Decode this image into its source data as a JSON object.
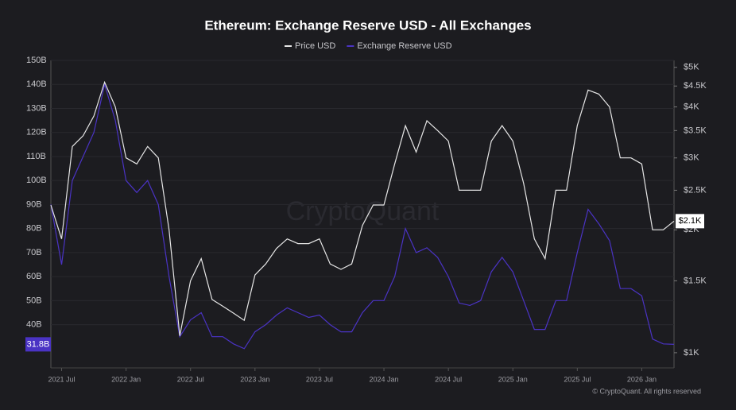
{
  "chart_data": {
    "type": "line",
    "title": "Ethereum: Exchange Reserve USD - All Exchanges",
    "watermark": "CryptoQuant",
    "copyright": "© CryptoQuant. All rights reserved",
    "x": [
      "2021-06",
      "2021-07",
      "2021-08",
      "2021-09",
      "2021-10",
      "2021-11",
      "2021-12",
      "2022-01",
      "2022-02",
      "2022-03",
      "2022-04",
      "2022-05",
      "2022-06",
      "2022-07",
      "2022-08",
      "2022-09",
      "2022-10",
      "2022-11",
      "2022-12",
      "2023-01",
      "2023-02",
      "2023-03",
      "2023-04",
      "2023-05",
      "2023-06",
      "2023-07",
      "2023-08",
      "2023-09",
      "2023-10",
      "2023-11",
      "2023-12",
      "2024-01",
      "2024-02",
      "2024-03",
      "2024-04",
      "2024-05",
      "2024-06",
      "2024-07",
      "2024-08",
      "2024-09",
      "2024-10",
      "2024-11",
      "2024-12",
      "2025-01",
      "2025-02",
      "2025-03",
      "2025-04",
      "2025-05",
      "2025-06",
      "2025-07",
      "2025-08",
      "2025-09",
      "2025-10",
      "2025-11",
      "2025-12",
      "2026-01",
      "2026-02",
      "2026-03",
      "2026-04"
    ],
    "xlim": [
      "2021-06",
      "2026-04"
    ],
    "xticks": [
      {
        "value": "2021-07",
        "label": "2021 Jul"
      },
      {
        "value": "2022-01",
        "label": "2022 Jan"
      },
      {
        "value": "2022-07",
        "label": "2022 Jul"
      },
      {
        "value": "2023-01",
        "label": "2023 Jan"
      },
      {
        "value": "2023-07",
        "label": "2023 Jul"
      },
      {
        "value": "2024-01",
        "label": "2024 Jan"
      },
      {
        "value": "2024-07",
        "label": "2024 Jul"
      },
      {
        "value": "2025-01",
        "label": "2025 Jan"
      },
      {
        "value": "2025-07",
        "label": "2025 Jul"
      },
      {
        "value": "2026-01",
        "label": "2026 Jan"
      }
    ],
    "ylim": [
      22,
      150
    ],
    "yticks": [
      {
        "value": 40,
        "label": "40B"
      },
      {
        "value": 50,
        "label": "50B"
      },
      {
        "value": 60,
        "label": "60B"
      },
      {
        "value": 70,
        "label": "70B"
      },
      {
        "value": 80,
        "label": "80B"
      },
      {
        "value": 90,
        "label": "90B"
      },
      {
        "value": 100,
        "label": "100B"
      },
      {
        "value": 110,
        "label": "110B"
      },
      {
        "value": 120,
        "label": "120B"
      },
      {
        "value": 130,
        "label": "130B"
      },
      {
        "value": 140,
        "label": "140B"
      },
      {
        "value": 150,
        "label": "150B"
      }
    ],
    "y2lim": [
      918,
      5200
    ],
    "y2scale": "log",
    "y2ticks": [
      {
        "value": 1000,
        "label": "$1K"
      },
      {
        "value": 1500,
        "label": "$1.5K"
      },
      {
        "value": 2000,
        "label": "$2K"
      },
      {
        "value": 2500,
        "label": "$2.5K"
      },
      {
        "value": 3000,
        "label": "$3K"
      },
      {
        "value": 3500,
        "label": "$3.5K"
      },
      {
        "value": 4000,
        "label": "$4K"
      },
      {
        "value": 4500,
        "label": "$4.5K"
      },
      {
        "value": 5000,
        "label": "$5K"
      }
    ],
    "grid": true,
    "series": [
      {
        "name": "Price USD",
        "color": "#e6e6e6",
        "axis": "y2",
        "values": [
          2300,
          1900,
          3200,
          3400,
          3800,
          4600,
          4000,
          3000,
          2900,
          3200,
          3000,
          2000,
          1100,
          1500,
          1700,
          1350,
          1300,
          1250,
          1200,
          1550,
          1650,
          1800,
          1900,
          1850,
          1850,
          1900,
          1650,
          1600,
          1650,
          2050,
          2300,
          2300,
          2900,
          3600,
          3100,
          3700,
          3500,
          3300,
          2500,
          2500,
          2500,
          3300,
          3600,
          3300,
          2600,
          1900,
          1700,
          2500,
          2500,
          3600,
          4400,
          4300,
          4000,
          3000,
          3000,
          2900,
          2000,
          2000,
          2100
        ],
        "value_labels": [
          null,
          null,
          null,
          null,
          null,
          null,
          null,
          null,
          null,
          null,
          null,
          null,
          null,
          null,
          null,
          null,
          null,
          null,
          null,
          null,
          null,
          null,
          null,
          null,
          null,
          null,
          null,
          null,
          null,
          null,
          null,
          null,
          null,
          null,
          null,
          null,
          null,
          null,
          null,
          null,
          null,
          null,
          null,
          null,
          null,
          null,
          null,
          null,
          null,
          null,
          null,
          null,
          null,
          null,
          null,
          null,
          null,
          null,
          "$2.1K"
        ]
      },
      {
        "name": "Exchange Reserve USD",
        "color": "#4a33c4",
        "values": [
          90,
          65,
          100,
          110,
          120,
          140,
          125,
          100,
          95,
          100,
          90,
          60,
          35,
          42,
          45,
          35,
          35,
          32,
          30,
          37,
          40,
          44,
          47,
          45,
          43,
          44,
          40,
          37,
          37,
          45,
          50,
          50,
          60,
          80,
          70,
          72,
          68,
          60,
          49,
          48,
          50,
          62,
          68,
          62,
          50,
          38,
          38,
          50,
          50,
          70,
          88,
          82,
          75,
          55,
          55,
          52,
          34,
          32,
          31.8
        ],
        "value_labels": [
          null,
          null,
          null,
          null,
          null,
          null,
          null,
          null,
          null,
          null,
          null,
          null,
          null,
          null,
          null,
          null,
          null,
          null,
          null,
          null,
          null,
          null,
          null,
          null,
          null,
          null,
          null,
          null,
          null,
          null,
          null,
          null,
          null,
          null,
          null,
          null,
          null,
          null,
          null,
          null,
          null,
          null,
          null,
          null,
          null,
          null,
          null,
          null,
          null,
          null,
          null,
          null,
          null,
          null,
          null,
          null,
          null,
          null,
          "31.8B"
        ]
      }
    ]
  }
}
